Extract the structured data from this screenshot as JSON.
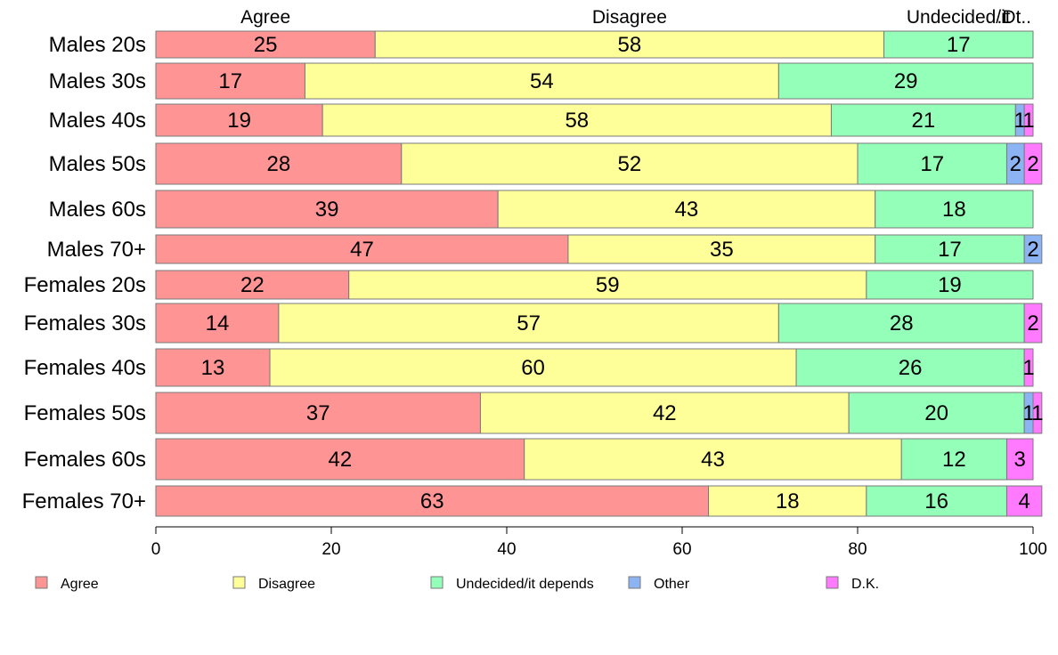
{
  "chart_data": {
    "type": "bar",
    "orientation": "horizontal",
    "stacked": true,
    "categories": [
      "Males 20s",
      "Males 30s",
      "Males 40s",
      "Males 50s",
      "Males 60s",
      "Males 70+",
      "Females 20s",
      "Females 30s",
      "Females 40s",
      "Females 50s",
      "Females 60s",
      "Females 70+"
    ],
    "series": [
      {
        "name": "Agree",
        "color": "#FF9494",
        "values": [
          25,
          17,
          19,
          28,
          39,
          47,
          22,
          14,
          13,
          37,
          42,
          63
        ]
      },
      {
        "name": "Disagree",
        "color": "#FFFF99",
        "values": [
          58,
          54,
          58,
          52,
          43,
          35,
          59,
          57,
          60,
          42,
          43,
          18
        ]
      },
      {
        "name": "Undecided/it depends",
        "color": "#94FFB8",
        "values": [
          17,
          29,
          21,
          17,
          18,
          17,
          19,
          28,
          26,
          20,
          12,
          16
        ]
      },
      {
        "name": "Other",
        "color": "#8CB4F2",
        "values": [
          0,
          0,
          1,
          2,
          0,
          2,
          0,
          0,
          0,
          1,
          0,
          0
        ]
      },
      {
        "name": "D.K.",
        "color": "#FF7AFF",
        "values": [
          0,
          0,
          1,
          2,
          0,
          0,
          0,
          2,
          1,
          1,
          3,
          4
        ]
      }
    ],
    "top_labels": [
      "Agree",
      "Disagree",
      "Undecided/it",
      ".Dt.."
    ],
    "xlim": [
      0,
      100
    ],
    "xticks": [
      0,
      20,
      40,
      60,
      80,
      100
    ],
    "xlabel": "",
    "ylabel": "",
    "title": "",
    "grid": false,
    "legend_position": "bottom"
  }
}
